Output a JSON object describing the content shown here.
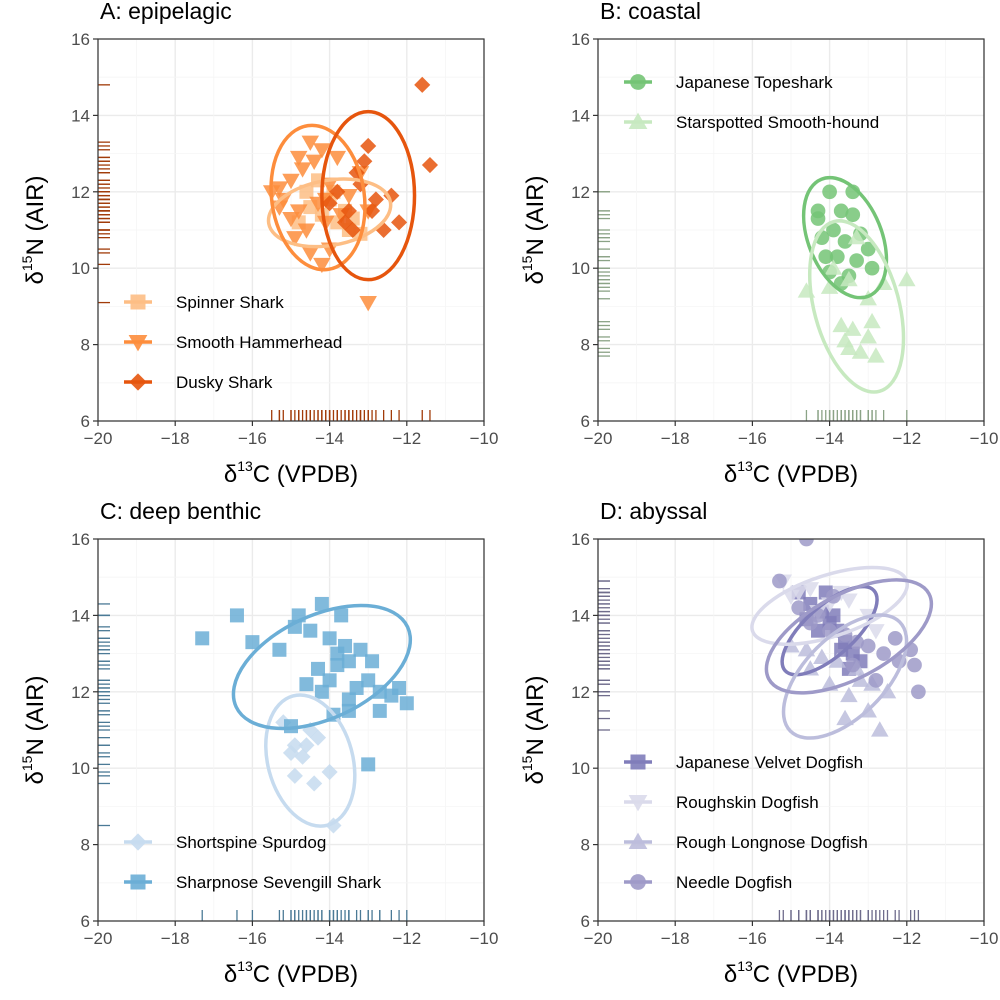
{
  "chart_data": [
    {
      "type": "scatter",
      "title": "A: epipelagic",
      "xlim": [
        -20,
        -10
      ],
      "ylim": [
        6,
        16
      ],
      "xticks": [
        -20,
        -18,
        -16,
        -14,
        -12,
        -10
      ],
      "yticks": [
        6,
        8,
        10,
        12,
        14,
        16
      ],
      "xlabel_main": "δ",
      "xlabel_sup": "13",
      "xlabel_rest": "C (VPDB)",
      "ylabel_main": "δ",
      "ylabel_sup": "15",
      "ylabel_rest": "N (AIR)",
      "grid": true,
      "ellipses": true,
      "rug": true,
      "legend_position": "bottom-left",
      "series": [
        {
          "name": "Spinner Shark",
          "color": "#fdbe85",
          "marker": "square",
          "points": [
            [
              -14.5,
              11.6
            ],
            [
              -14.2,
              11.4
            ],
            [
              -13.8,
              11.2
            ],
            [
              -13.5,
              11.0
            ],
            [
              -13.2,
              10.9
            ],
            [
              -14.0,
              11.8
            ],
            [
              -14.6,
              12.0
            ],
            [
              -13.6,
              11.5
            ],
            [
              -14.3,
              12.3
            ],
            [
              -13.9,
              12.0
            ],
            [
              -14.8,
              11.2
            ],
            [
              -13.4,
              11.3
            ]
          ],
          "ellipse": {
            "cx": -14.0,
            "cy": 11.45,
            "rx": 1.6,
            "ry": 0.85,
            "angle": -10
          }
        },
        {
          "name": "Smooth Hammerhead",
          "color": "#fd8d3c",
          "marker": "triangle-down",
          "points": [
            [
              -15.5,
              12.0
            ],
            [
              -15.2,
              11.8
            ],
            [
              -15.0,
              12.3
            ],
            [
              -14.8,
              11.5
            ],
            [
              -14.5,
              13.3
            ],
            [
              -14.2,
              13.1
            ],
            [
              -14.0,
              12.2
            ],
            [
              -14.7,
              12.6
            ],
            [
              -15.3,
              12.1
            ],
            [
              -14.3,
              11.7
            ],
            [
              -14.1,
              11.2
            ],
            [
              -14.9,
              10.8
            ],
            [
              -14.6,
              11.0
            ],
            [
              -14.0,
              10.5
            ],
            [
              -13.7,
              11.4
            ],
            [
              -13.8,
              12.9
            ],
            [
              -14.4,
              12.8
            ],
            [
              -15.0,
              11.3
            ],
            [
              -14.5,
              10.4
            ],
            [
              -13.2,
              12.5
            ],
            [
              -13.0,
              11.5
            ],
            [
              -14.2,
              10.1
            ],
            [
              -15.3,
              11.6
            ],
            [
              -14.8,
              12.9
            ],
            [
              -13.5,
              11.9
            ],
            [
              -14.1,
              11.8
            ],
            [
              -13.0,
              9.1
            ]
          ],
          "ellipse": {
            "cx": -14.3,
            "cy": 11.85,
            "rx": 1.2,
            "ry": 1.9,
            "angle": -8
          }
        },
        {
          "name": "Dusky Shark",
          "color": "#e6550d",
          "marker": "diamond",
          "points": [
            [
              -11.6,
              14.8
            ],
            [
              -11.4,
              12.7
            ],
            [
              -13.0,
              13.2
            ],
            [
              -13.3,
              12.5
            ],
            [
              -12.8,
              11.8
            ],
            [
              -13.5,
              11.5
            ],
            [
              -12.6,
              11.0
            ],
            [
              -12.2,
              11.2
            ],
            [
              -13.1,
              12.8
            ],
            [
              -13.8,
              12.0
            ],
            [
              -13.6,
              11.2
            ],
            [
              -12.9,
              11.5
            ],
            [
              -12.4,
              11.9
            ],
            [
              -13.2,
              12.2
            ],
            [
              -14.0,
              11.7
            ],
            [
              -13.4,
              11.0
            ]
          ],
          "ellipse": {
            "cx": -13.0,
            "cy": 11.9,
            "rx": 1.2,
            "ry": 2.2,
            "angle": 0
          }
        }
      ]
    },
    {
      "type": "scatter",
      "title": "B: coastal",
      "xlim": [
        -20,
        -10
      ],
      "ylim": [
        6,
        16
      ],
      "xticks": [
        -20,
        -18,
        -16,
        -14,
        -12,
        -10
      ],
      "yticks": [
        6,
        8,
        10,
        12,
        14,
        16
      ],
      "xlabel_main": "δ",
      "xlabel_sup": "13",
      "xlabel_rest": "C (VPDB)",
      "ylabel_main": "δ",
      "ylabel_sup": "15",
      "ylabel_rest": "N (AIR)",
      "grid": true,
      "ellipses": true,
      "rug": true,
      "legend_position": "top-left",
      "series": [
        {
          "name": "Japanese Topeshark",
          "color": "#74c476",
          "marker": "circle",
          "points": [
            [
              -14.0,
              12.0
            ],
            [
              -13.4,
              12.0
            ],
            [
              -14.3,
              11.5
            ],
            [
              -13.7,
              11.5
            ],
            [
              -13.4,
              11.4
            ],
            [
              -13.9,
              11.0
            ],
            [
              -13.2,
              10.9
            ],
            [
              -14.2,
              10.8
            ],
            [
              -13.6,
              10.7
            ],
            [
              -13.8,
              10.3
            ],
            [
              -13.3,
              10.2
            ],
            [
              -14.0,
              9.9
            ],
            [
              -13.5,
              9.8
            ],
            [
              -12.9,
              10.0
            ],
            [
              -13.7,
              9.6
            ],
            [
              -14.3,
              11.3
            ],
            [
              -13.0,
              10.5
            ],
            [
              -14.1,
              10.3
            ]
          ],
          "ellipse": {
            "cx": -13.6,
            "cy": 10.8,
            "rx": 0.95,
            "ry": 1.65,
            "angle": -22
          }
        },
        {
          "name": "Starspotted Smooth-hound",
          "color": "#c7e9c0",
          "marker": "triangle",
          "points": [
            [
              -14.6,
              9.4
            ],
            [
              -14.0,
              9.5
            ],
            [
              -13.5,
              9.7
            ],
            [
              -12.0,
              9.7
            ],
            [
              -13.0,
              9.2
            ],
            [
              -13.3,
              10.8
            ],
            [
              -13.7,
              8.5
            ],
            [
              -13.0,
              8.2
            ],
            [
              -13.5,
              7.9
            ],
            [
              -12.8,
              7.7
            ],
            [
              -13.6,
              8.1
            ],
            [
              -13.2,
              7.8
            ],
            [
              -12.6,
              9.6
            ],
            [
              -13.9,
              10.0
            ],
            [
              -13.4,
              8.4
            ],
            [
              -12.9,
              8.6
            ]
          ],
          "ellipse": {
            "cx": -13.3,
            "cy": 9.0,
            "rx": 1.1,
            "ry": 2.3,
            "angle": -15
          }
        }
      ]
    },
    {
      "type": "scatter",
      "title": "C: deep benthic",
      "xlim": [
        -20,
        -10
      ],
      "ylim": [
        6,
        16
      ],
      "xticks": [
        -20,
        -18,
        -16,
        -14,
        -12,
        -10
      ],
      "yticks": [
        6,
        8,
        10,
        12,
        14,
        16
      ],
      "xlabel_main": "δ",
      "xlabel_sup": "13",
      "xlabel_rest": "C (VPDB)",
      "ylabel_main": "δ",
      "ylabel_sup": "15",
      "ylabel_rest": "N (AIR)",
      "grid": true,
      "ellipses": true,
      "rug": true,
      "legend_position": "bottom-left",
      "series": [
        {
          "name": "Shortspine Spurdog",
          "color": "#c6dbef",
          "marker": "diamond",
          "points": [
            [
              -15.2,
              11.2
            ],
            [
              -14.9,
              10.6
            ],
            [
              -14.6,
              10.6
            ],
            [
              -14.3,
              10.8
            ],
            [
              -14.7,
              10.3
            ],
            [
              -14.9,
              9.8
            ],
            [
              -14.0,
              9.9
            ],
            [
              -14.4,
              9.6
            ],
            [
              -13.9,
              8.5
            ],
            [
              -14.5,
              11.0
            ],
            [
              -15.0,
              10.4
            ]
          ],
          "ellipse": {
            "cx": -14.5,
            "cy": 10.2,
            "rx": 1.1,
            "ry": 1.75,
            "angle": -15
          }
        },
        {
          "name": "Sharpnose Sevengill Shark",
          "color": "#6baed6",
          "marker": "square",
          "points": [
            [
              -17.3,
              13.4
            ],
            [
              -16.4,
              14.0
            ],
            [
              -16.0,
              13.3
            ],
            [
              -15.3,
              13.1
            ],
            [
              -14.8,
              14.0
            ],
            [
              -14.2,
              14.3
            ],
            [
              -13.7,
              14.0
            ],
            [
              -14.0,
              13.4
            ],
            [
              -13.8,
              13.0
            ],
            [
              -13.5,
              12.8
            ],
            [
              -14.3,
              12.6
            ],
            [
              -14.0,
              12.3
            ],
            [
              -13.3,
              12.1
            ],
            [
              -13.5,
              11.8
            ],
            [
              -12.7,
              12.0
            ],
            [
              -12.9,
              12.8
            ],
            [
              -13.0,
              12.3
            ],
            [
              -12.2,
              12.1
            ],
            [
              -12.0,
              11.7
            ],
            [
              -13.5,
              11.5
            ],
            [
              -14.6,
              12.2
            ],
            [
              -15.0,
              11.1
            ],
            [
              -13.0,
              10.1
            ],
            [
              -14.9,
              13.7
            ],
            [
              -13.8,
              12.7
            ],
            [
              -14.2,
              12.0
            ],
            [
              -13.9,
              11.4
            ],
            [
              -12.4,
              11.9
            ],
            [
              -12.7,
              11.5
            ],
            [
              -13.2,
              13.1
            ],
            [
              -14.5,
              13.6
            ],
            [
              -13.6,
              13.2
            ]
          ],
          "ellipse": {
            "cx": -14.2,
            "cy": 12.65,
            "rx": 2.45,
            "ry": 1.35,
            "angle": -25
          }
        }
      ]
    },
    {
      "type": "scatter",
      "title": "D: abyssal",
      "xlim": [
        -20,
        -10
      ],
      "ylim": [
        6,
        16
      ],
      "xticks": [
        -20,
        -18,
        -16,
        -14,
        -12,
        -10
      ],
      "yticks": [
        6,
        8,
        10,
        12,
        14,
        16
      ],
      "xlabel_main": "δ",
      "xlabel_sup": "13",
      "xlabel_rest": "C (VPDB)",
      "ylabel_main": "δ",
      "ylabel_sup": "15",
      "ylabel_rest": "N (AIR)",
      "grid": true,
      "ellipses": true,
      "rug": true,
      "legend_position": "bottom-left",
      "series": [
        {
          "name": "Japanese Velvet Dogfish",
          "color": "#807dba",
          "marker": "square",
          "points": [
            [
              -14.8,
              14.6
            ],
            [
              -14.5,
              14.3
            ],
            [
              -14.2,
              14.1
            ],
            [
              -14.0,
              13.8
            ],
            [
              -13.8,
              13.6
            ],
            [
              -13.6,
              13.3
            ],
            [
              -13.4,
              13.0
            ],
            [
              -13.2,
              12.8
            ],
            [
              -14.3,
              13.6
            ],
            [
              -13.9,
              14.0
            ],
            [
              -14.6,
              13.9
            ],
            [
              -13.5,
              12.6
            ],
            [
              -14.1,
              14.6
            ],
            [
              -13.7,
              13.1
            ]
          ],
          "ellipse": {
            "cx": -14.0,
            "cy": 13.6,
            "rx": 1.55,
            "ry": 0.65,
            "angle": -42
          }
        },
        {
          "name": "Roughskin Dogfish",
          "color": "#dadaeb",
          "marker": "triangle-down",
          "points": [
            [
              -15.2,
              14.9
            ],
            [
              -14.8,
              14.6
            ],
            [
              -14.5,
              14.7
            ],
            [
              -14.0,
              14.3
            ],
            [
              -13.5,
              14.4
            ],
            [
              -13.0,
              14.0
            ],
            [
              -14.3,
              14.1
            ],
            [
              -12.8,
              13.6
            ],
            [
              -15.0,
              14.5
            ],
            [
              -13.7,
              14.6
            ]
          ],
          "ellipse": {
            "cx": -14.0,
            "cy": 14.25,
            "rx": 2.1,
            "ry": 0.8,
            "angle": -18
          }
        },
        {
          "name": "Rough Longnose Dogfish",
          "color": "#bcbddc",
          "marker": "triangle",
          "points": [
            [
              -15.0,
              13.2
            ],
            [
              -14.5,
              12.6
            ],
            [
              -14.0,
              12.2
            ],
            [
              -13.8,
              12.8
            ],
            [
              -13.5,
              11.9
            ],
            [
              -13.2,
              12.3
            ],
            [
              -13.0,
              11.5
            ],
            [
              -12.7,
              11.0
            ],
            [
              -13.6,
              11.3
            ],
            [
              -14.2,
              12.9
            ],
            [
              -12.5,
              12.0
            ],
            [
              -13.3,
              12.6
            ],
            [
              -14.6,
              13.1
            ],
            [
              -12.9,
              12.2
            ]
          ],
          "ellipse": {
            "cx": -13.6,
            "cy": 12.4,
            "rx": 2.0,
            "ry": 1.05,
            "angle": -45
          }
        },
        {
          "name": "Needle Dogfish",
          "color": "#9e9ac8",
          "marker": "circle",
          "points": [
            [
              -15.3,
              14.9
            ],
            [
              -14.6,
              16.0
            ],
            [
              -14.8,
              14.2
            ],
            [
              -14.3,
              14.0
            ],
            [
              -14.0,
              13.6
            ],
            [
              -13.6,
              13.5
            ],
            [
              -13.3,
              13.3
            ],
            [
              -13.0,
              13.2
            ],
            [
              -12.6,
              13.0
            ],
            [
              -12.2,
              12.8
            ],
            [
              -11.8,
              12.7
            ],
            [
              -11.7,
              12.0
            ],
            [
              -13.4,
              12.7
            ],
            [
              -12.8,
              12.3
            ],
            [
              -14.5,
              13.8
            ],
            [
              -13.9,
              14.5
            ],
            [
              -12.3,
              13.4
            ],
            [
              -11.9,
              13.1
            ]
          ],
          "ellipse": {
            "cx": -13.5,
            "cy": 13.45,
            "rx": 2.35,
            "ry": 1.1,
            "angle": -28
          }
        }
      ]
    }
  ]
}
